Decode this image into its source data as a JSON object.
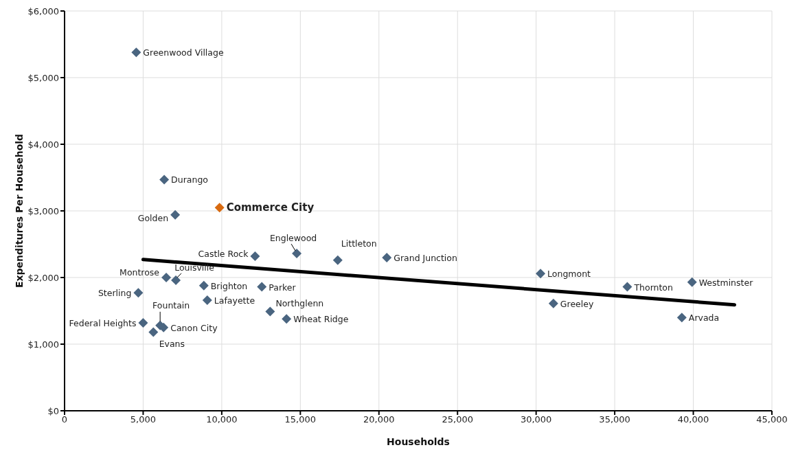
{
  "chart_data": {
    "type": "scatter",
    "xlabel": "Households",
    "ylabel": "Expenditures Per Household",
    "grid": true,
    "xlim": [
      0,
      45000
    ],
    "xticks": [
      0,
      {
        "value": 5000,
        "label": "5,000"
      },
      {
        "value": 10000,
        "label": "10,000"
      },
      {
        "value": 15000,
        "label": "15,000"
      },
      {
        "value": 20000,
        "label": "20,000"
      },
      {
        "value": 25000,
        "label": "25,000"
      },
      {
        "value": 30000,
        "label": "30,000"
      },
      {
        "value": 35000,
        "label": "35,000"
      },
      {
        "value": 40000,
        "label": "40,000"
      },
      {
        "value": 45000,
        "label": "45,000"
      }
    ],
    "ylim": [
      0,
      6000
    ],
    "yticks": [
      {
        "value": 0,
        "label": "$0"
      },
      {
        "value": 1000,
        "label": "$1,000"
      },
      {
        "value": 2000,
        "label": "$2,000"
      },
      {
        "value": 3000,
        "label": "$3,000"
      },
      {
        "value": 4000,
        "label": "$4,000"
      },
      {
        "value": 5000,
        "label": "$5,000"
      },
      {
        "value": 6000,
        "label": "$6,000"
      }
    ],
    "series": [
      {
        "marker": "diamond",
        "color": "#4a6580",
        "x": [
          4560,
          6340,
          7040,
          9860,
          14770,
          12120,
          17380,
          20500,
          6470,
          7080,
          4690,
          8860,
          12550,
          9080,
          13080,
          14120,
          5000,
          6080,
          6300,
          5650,
          30280,
          31100,
          35800,
          39920,
          39270
        ],
        "values": [
          5380,
          3470,
          2940,
          3050,
          2360,
          2320,
          2260,
          2300,
          2000,
          1960,
          1770,
          1880,
          1860,
          1660,
          1490,
          1380,
          1320,
          1280,
          1250,
          1180,
          2060,
          1610,
          1860,
          1930,
          1400
        ],
        "colors": [
          "#4a6580",
          "#4a6580",
          "#4a6580",
          "#d86a10",
          "#4a6580",
          "#4a6580",
          "#4a6580",
          "#4a6580",
          "#4a6580",
          "#4a6580",
          "#4a6580",
          "#4a6580",
          "#4a6580",
          "#4a6580",
          "#4a6580",
          "#4a6580",
          "#4a6580",
          "#4a6580",
          "#4a6580",
          "#4a6580",
          "#4a6580",
          "#4a6580",
          "#4a6580",
          "#4a6580",
          "#4a6580"
        ]
      },
      {
        "type": "line",
        "marker": "none",
        "color": "#000000",
        "x": [
          5000,
          42620
        ],
        "values": [
          2270,
          1590
        ]
      }
    ],
    "annotations": [
      {
        "text": "Greenwood Village",
        "x": 4560,
        "y": 5380
      },
      {
        "text": "Durango",
        "x": 6340,
        "y": 3470
      },
      {
        "text": "Golden",
        "x": 7040,
        "y": 2940
      },
      {
        "text": "Commerce City",
        "x": 9860,
        "y": 3050
      },
      {
        "text": "Englewood",
        "x": 14770,
        "y": 2360
      },
      {
        "text": "Castle Rock",
        "x": 12120,
        "y": 2320
      },
      {
        "text": "Littleton",
        "x": 17380,
        "y": 2260
      },
      {
        "text": "Grand Junction",
        "x": 20500,
        "y": 2300
      },
      {
        "text": "Montrose",
        "x": 6470,
        "y": 2000
      },
      {
        "text": "Louisville",
        "x": 7080,
        "y": 1960
      },
      {
        "text": "Sterling",
        "x": 4690,
        "y": 1770
      },
      {
        "text": "Brighton",
        "x": 8860,
        "y": 1880
      },
      {
        "text": "Parker",
        "x": 12550,
        "y": 1860
      },
      {
        "text": "Lafayette",
        "x": 9080,
        "y": 1660
      },
      {
        "text": "Northglenn",
        "x": 13080,
        "y": 1490
      },
      {
        "text": "Wheat Ridge",
        "x": 14120,
        "y": 1380
      },
      {
        "text": "Federal Heights",
        "x": 5000,
        "y": 1320
      },
      {
        "text": "Fountain",
        "x": 6080,
        "y": 1280
      },
      {
        "text": "Canon City",
        "x": 6300,
        "y": 1250
      },
      {
        "text": "Evans",
        "x": 5650,
        "y": 1180
      },
      {
        "text": "Longmont",
        "x": 30280,
        "y": 2060
      },
      {
        "text": "Greeley",
        "x": 31100,
        "y": 1610
      },
      {
        "text": "Thornton",
        "x": 35800,
        "y": 1860
      },
      {
        "text": "Westminster",
        "x": 39920,
        "y": 1930
      },
      {
        "text": "Arvada",
        "x": 39270,
        "y": 1400
      }
    ]
  }
}
